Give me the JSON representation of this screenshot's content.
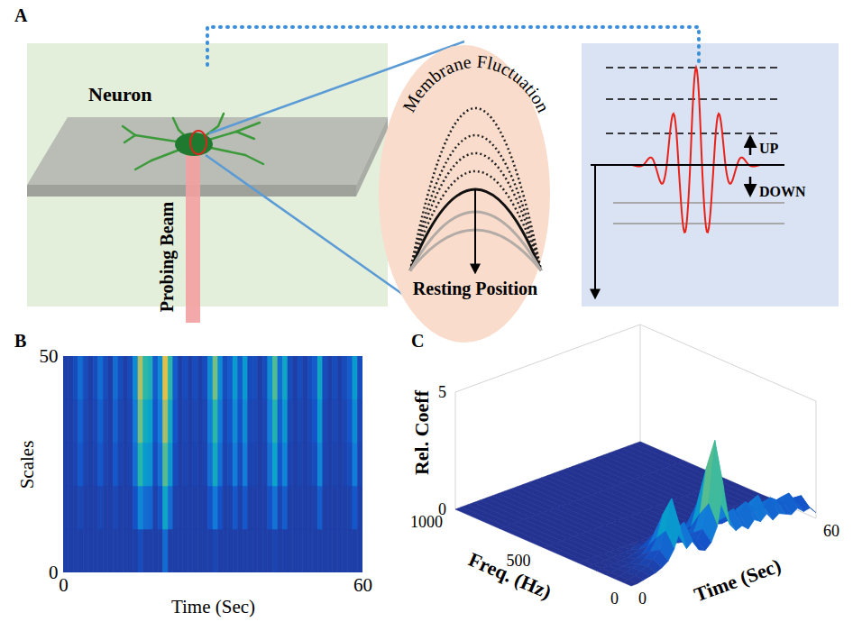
{
  "diagram": {
    "panel": "A",
    "texts": {
      "neuron": "Neuron",
      "beam": "Probing Beam",
      "fluctuation": "Membrane Fluctuation",
      "resting": "Resting Position",
      "up": "UP",
      "down": "DOWN"
    }
  },
  "chart_data": [
    {
      "panel": "B",
      "type": "heatmap",
      "x_label": "Time (Sec)",
      "y_label": "Scales",
      "x_edges": [
        0,
        1,
        2,
        3,
        4,
        5,
        6,
        7,
        8,
        9,
        10,
        11,
        12,
        13,
        14,
        15,
        16,
        17,
        18,
        19,
        20,
        21,
        22,
        23,
        24,
        25,
        26,
        27,
        28,
        29,
        30,
        31,
        32,
        33,
        34,
        35,
        36,
        37,
        38,
        39,
        40,
        41,
        42,
        43,
        44,
        45,
        46,
        47,
        48,
        49,
        50,
        51,
        52,
        53,
        54,
        55,
        56,
        57,
        58,
        59,
        60
      ],
      "y_edges": [
        0,
        10,
        20,
        30,
        40,
        50
      ],
      "z": [
        [
          0.05,
          0.05,
          0.05,
          0.05,
          0.05,
          0.05,
          0.05,
          0.05,
          0.05,
          0.05,
          0.05,
          0.05,
          0.05,
          0.05,
          0.05,
          0.1,
          0.05,
          0.05,
          0.05,
          0.05,
          0.2,
          0.05,
          0.05,
          0.05,
          0.05,
          0.05,
          0.05,
          0.05,
          0.05,
          0.05,
          0.08,
          0.05,
          0.05,
          0.05,
          0.05,
          0.05,
          0.05,
          0.05,
          0.05,
          0.05,
          0.05,
          0.05,
          0.07,
          0.05,
          0.05,
          0.05,
          0.05,
          0.05,
          0.05,
          0.05,
          0.05,
          0.05,
          0.05,
          0.05,
          0.05,
          0.05,
          0.05,
          0.05,
          0.05,
          0.05
        ],
        [
          0.05,
          0.05,
          0.05,
          0.08,
          0.05,
          0.05,
          0.05,
          0.08,
          0.05,
          0.05,
          0.08,
          0.05,
          0.05,
          0.05,
          0.12,
          0.28,
          0.2,
          0.18,
          0.06,
          0.12,
          0.4,
          0.2,
          0.06,
          0.05,
          0.05,
          0.05,
          0.05,
          0.05,
          0.05,
          0.12,
          0.24,
          0.12,
          0.05,
          0.06,
          0.14,
          0.06,
          0.14,
          0.05,
          0.05,
          0.05,
          0.05,
          0.12,
          0.22,
          0.08,
          0.16,
          0.05,
          0.05,
          0.05,
          0.05,
          0.05,
          0.06,
          0.16,
          0.05,
          0.05,
          0.05,
          0.05,
          0.05,
          0.06,
          0.14,
          0.05
        ],
        [
          0.05,
          0.05,
          0.07,
          0.14,
          0.07,
          0.05,
          0.07,
          0.14,
          0.07,
          0.05,
          0.14,
          0.07,
          0.05,
          0.07,
          0.21,
          0.49,
          0.35,
          0.32,
          0.1,
          0.21,
          0.56,
          0.35,
          0.1,
          0.05,
          0.07,
          0.05,
          0.07,
          0.05,
          0.07,
          0.21,
          0.42,
          0.21,
          0.07,
          0.1,
          0.25,
          0.1,
          0.25,
          0.07,
          0.07,
          0.05,
          0.07,
          0.21,
          0.39,
          0.14,
          0.28,
          0.07,
          0.05,
          0.07,
          0.05,
          0.07,
          0.1,
          0.28,
          0.07,
          0.05,
          0.07,
          0.05,
          0.07,
          0.1,
          0.25,
          0.07
        ],
        [
          0.05,
          0.05,
          0.08,
          0.17,
          0.08,
          0.05,
          0.08,
          0.17,
          0.08,
          0.05,
          0.17,
          0.08,
          0.05,
          0.08,
          0.25,
          0.6,
          0.42,
          0.38,
          0.13,
          0.25,
          0.68,
          0.42,
          0.13,
          0.05,
          0.08,
          0.05,
          0.08,
          0.05,
          0.08,
          0.25,
          0.5,
          0.25,
          0.08,
          0.13,
          0.3,
          0.13,
          0.3,
          0.08,
          0.08,
          0.05,
          0.08,
          0.25,
          0.47,
          0.17,
          0.34,
          0.08,
          0.05,
          0.08,
          0.05,
          0.08,
          0.13,
          0.34,
          0.08,
          0.05,
          0.08,
          0.05,
          0.08,
          0.13,
          0.3,
          0.08
        ],
        [
          0.05,
          0.05,
          0.1,
          0.2,
          0.1,
          0.05,
          0.1,
          0.2,
          0.1,
          0.05,
          0.2,
          0.1,
          0.05,
          0.1,
          0.3,
          0.7,
          0.5,
          0.45,
          0.15,
          0.3,
          0.8,
          0.5,
          0.15,
          0.05,
          0.1,
          0.05,
          0.1,
          0.05,
          0.1,
          0.3,
          0.6,
          0.3,
          0.1,
          0.15,
          0.35,
          0.15,
          0.35,
          0.1,
          0.1,
          0.05,
          0.1,
          0.3,
          0.55,
          0.2,
          0.4,
          0.1,
          0.05,
          0.1,
          0.05,
          0.1,
          0.15,
          0.4,
          0.1,
          0.05,
          0.1,
          0.05,
          0.1,
          0.15,
          0.35,
          0.1
        ]
      ],
      "zlim": [
        0,
        1
      ],
      "xlim": [
        0,
        60
      ],
      "xticks": [
        0,
        60
      ],
      "ylim": [
        0,
        50
      ],
      "yticks": [
        0,
        50
      ]
    },
    {
      "panel": "C",
      "type": "surface",
      "x_label": "Time (Sec)",
      "y_label": "Freq. (Hz)",
      "z_label": "Rel. Coeff",
      "x": [
        0,
        2,
        4,
        6,
        8,
        10,
        12,
        14,
        16,
        18,
        20,
        22,
        24,
        26,
        28,
        30,
        32,
        34,
        36,
        38,
        40,
        42,
        44,
        46,
        48,
        50,
        52,
        54,
        56,
        58,
        60
      ],
      "y": [
        0,
        50,
        100,
        150,
        200,
        250,
        300,
        500,
        750,
        1000
      ],
      "z": [
        [
          0,
          0,
          0.06,
          0.12,
          0.18,
          0.3,
          0.48,
          0.9,
          1.68,
          0.72,
          0.96,
          0.48,
          0.36,
          0.6,
          1.2,
          2.76,
          1.08,
          0.72,
          0.84,
          0.6,
          0.9,
          0.72,
          0.96,
          0.6,
          0.78,
          0.66,
          0.54,
          0.72,
          0.48,
          0.54,
          0.24
        ],
        [
          0,
          0,
          0.1,
          0.2,
          0.3,
          0.5,
          0.8,
          1.5,
          2.8,
          1.2,
          1.6,
          0.8,
          0.6,
          1.0,
          2.0,
          4.6,
          1.8,
          1.2,
          1.4,
          1.0,
          1.5,
          1.2,
          1.6,
          1.0,
          1.3,
          1.1,
          0.9,
          1.2,
          0.8,
          0.9,
          0.4
        ],
        [
          0,
          0,
          0.07,
          0.14,
          0.21,
          0.35,
          0.56,
          1.05,
          1.96,
          0.84,
          1.12,
          0.56,
          0.42,
          0.7,
          1.4,
          3.22,
          1.26,
          0.84,
          0.98,
          0.7,
          1.05,
          0.84,
          1.12,
          0.7,
          0.91,
          0.77,
          0.63,
          0.84,
          0.56,
          0.63,
          0.28
        ],
        [
          0,
          0,
          0.04,
          0.07,
          0.11,
          0.18,
          0.28,
          0.53,
          0.98,
          0.42,
          0.56,
          0.28,
          0.21,
          0.35,
          0.7,
          1.61,
          0.63,
          0.42,
          0.49,
          0.35,
          0.53,
          0.42,
          0.56,
          0.35,
          0.46,
          0.39,
          0.32,
          0.42,
          0.28,
          0.32,
          0.14
        ],
        [
          0,
          0,
          0.02,
          0.03,
          0.05,
          0.08,
          0.12,
          0.23,
          0.42,
          0.18,
          0.24,
          0.12,
          0.09,
          0.15,
          0.3,
          0.69,
          0.27,
          0.18,
          0.21,
          0.15,
          0.23,
          0.18,
          0.24,
          0.15,
          0.2,
          0.17,
          0.14,
          0.18,
          0.12,
          0.14,
          0.06
        ],
        [
          0,
          0,
          0,
          0.01,
          0.02,
          0.03,
          0.04,
          0.08,
          0.14,
          0.06,
          0.08,
          0.04,
          0.03,
          0.05,
          0.1,
          0.23,
          0.09,
          0.06,
          0.07,
          0.05,
          0.08,
          0.06,
          0.08,
          0.05,
          0.07,
          0.06,
          0.05,
          0.06,
          0.04,
          0.05,
          0.02
        ],
        [
          0,
          0,
          0,
          0,
          0,
          0,
          0,
          0,
          0,
          0,
          0,
          0,
          0,
          0,
          0,
          0,
          0,
          0,
          0,
          0,
          0,
          0,
          0,
          0,
          0,
          0,
          0,
          0,
          0,
          0,
          0
        ],
        [
          0,
          0,
          0,
          0,
          0,
          0,
          0,
          0,
          0,
          0,
          0,
          0,
          0,
          0,
          0,
          0,
          0,
          0,
          0,
          0,
          0,
          0,
          0,
          0,
          0,
          0,
          0,
          0,
          0,
          0,
          0
        ],
        [
          0,
          0,
          0,
          0,
          0,
          0,
          0,
          0,
          0,
          0,
          0,
          0,
          0,
          0,
          0,
          0,
          0,
          0,
          0,
          0,
          0,
          0,
          0,
          0,
          0,
          0,
          0,
          0,
          0,
          0,
          0
        ],
        [
          0,
          0,
          0,
          0,
          0,
          0,
          0,
          0,
          0,
          0,
          0,
          0,
          0,
          0,
          0,
          0,
          0,
          0,
          0,
          0,
          0,
          0,
          0,
          0,
          0,
          0,
          0,
          0,
          0,
          0,
          0
        ]
      ],
      "xlim": [
        0,
        60
      ],
      "xticks": [
        0,
        60
      ],
      "ylim": [
        0,
        1000
      ],
      "yticks": [
        0,
        500,
        1000
      ],
      "zlim": [
        0,
        5
      ],
      "zticks": [
        0,
        5
      ]
    }
  ]
}
